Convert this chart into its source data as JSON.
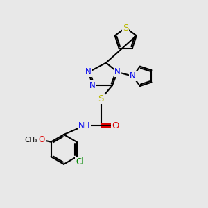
{
  "bg_color": "#e8e8e8",
  "bond_color": "#000000",
  "N_color": "#0000ee",
  "S_color": "#b8b800",
  "O_color": "#dd0000",
  "Cl_color": "#008800",
  "bond_width": 1.5,
  "font_size": 8.5,
  "fig_size": [
    3.0,
    3.0
  ],
  "dpi": 100,
  "xlim": [
    0,
    10
  ],
  "ylim": [
    0,
    10
  ]
}
